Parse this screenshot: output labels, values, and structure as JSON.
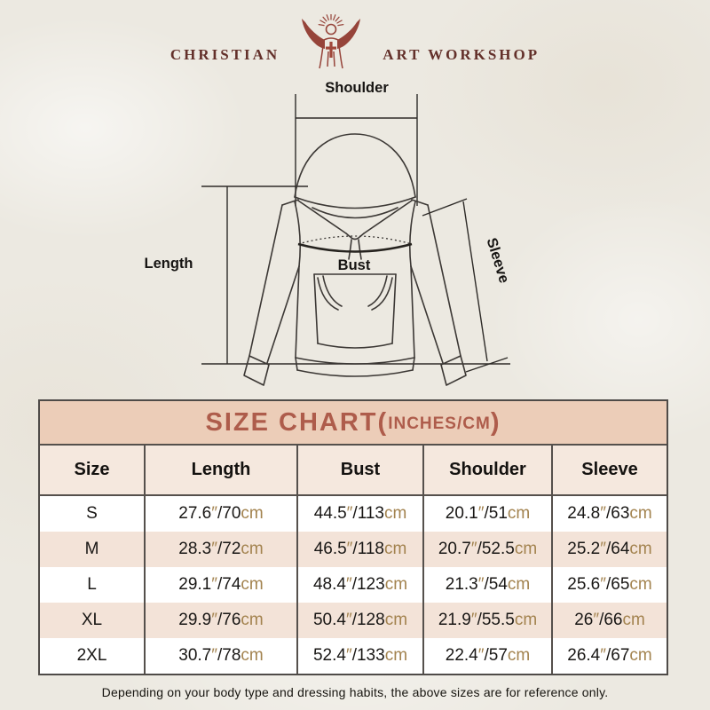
{
  "brand": {
    "left": "CHRISTIAN",
    "right": "ART WORKSHOP"
  },
  "diagram": {
    "labels": {
      "shoulder": "Shoulder",
      "length": "Length",
      "bust": "Bust",
      "sleeve": "Sleeve"
    }
  },
  "size_chart": {
    "title_main": "SIZE CHART",
    "title_open_paren": "(",
    "title_sub": "INCHES/CM",
    "title_close_paren": ")",
    "columns": [
      "Size",
      "Length",
      "Bust",
      "Shoulder",
      "Sleeve"
    ],
    "units": {
      "inch_mark": "″",
      "slash": "/",
      "cm_label": "cm"
    },
    "rows": [
      {
        "size": "S",
        "length": {
          "in": "27.6",
          "cm": "70"
        },
        "bust": {
          "in": "44.5",
          "cm": "113"
        },
        "shoulder": {
          "in": "20.1",
          "cm": "51"
        },
        "sleeve": {
          "in": "24.8",
          "cm": "63"
        }
      },
      {
        "size": "M",
        "length": {
          "in": "28.3",
          "cm": "72"
        },
        "bust": {
          "in": "46.5",
          "cm": "118"
        },
        "shoulder": {
          "in": "20.7",
          "cm": "52.5"
        },
        "sleeve": {
          "in": "25.2",
          "cm": "64"
        }
      },
      {
        "size": "L",
        "length": {
          "in": "29.1",
          "cm": "74"
        },
        "bust": {
          "in": "48.4",
          "cm": "123"
        },
        "shoulder": {
          "in": "21.3",
          "cm": "54"
        },
        "sleeve": {
          "in": "25.6",
          "cm": "65"
        }
      },
      {
        "size": "XL",
        "length": {
          "in": "29.9",
          "cm": "76"
        },
        "bust": {
          "in": "50.4",
          "cm": "128"
        },
        "shoulder": {
          "in": "21.9",
          "cm": "55.5"
        },
        "sleeve": {
          "in": "26",
          "cm": "66"
        }
      },
      {
        "size": "2XL",
        "length": {
          "in": "30.7",
          "cm": "78"
        },
        "bust": {
          "in": "52.4",
          "cm": "133"
        },
        "shoulder": {
          "in": "22.4",
          "cm": "57"
        },
        "sleeve": {
          "in": "26.4",
          "cm": "67"
        }
      }
    ]
  },
  "footer": {
    "note": "Depending on your body type and dressing habits, the above sizes are for reference only."
  },
  "colors": {
    "page_bg": "#ece9e1",
    "logo_maroon": "#63302a",
    "icon_maroon": "#96443a",
    "title_bg": "#eccdb8",
    "title_text": "#ae5c4b",
    "header_row_bg": "#f5e8de",
    "row_pink": "#f3e3d8",
    "unit_tan": "#a3834f",
    "line_dark": "#3c3835",
    "border_dark": "#4f4b48"
  }
}
